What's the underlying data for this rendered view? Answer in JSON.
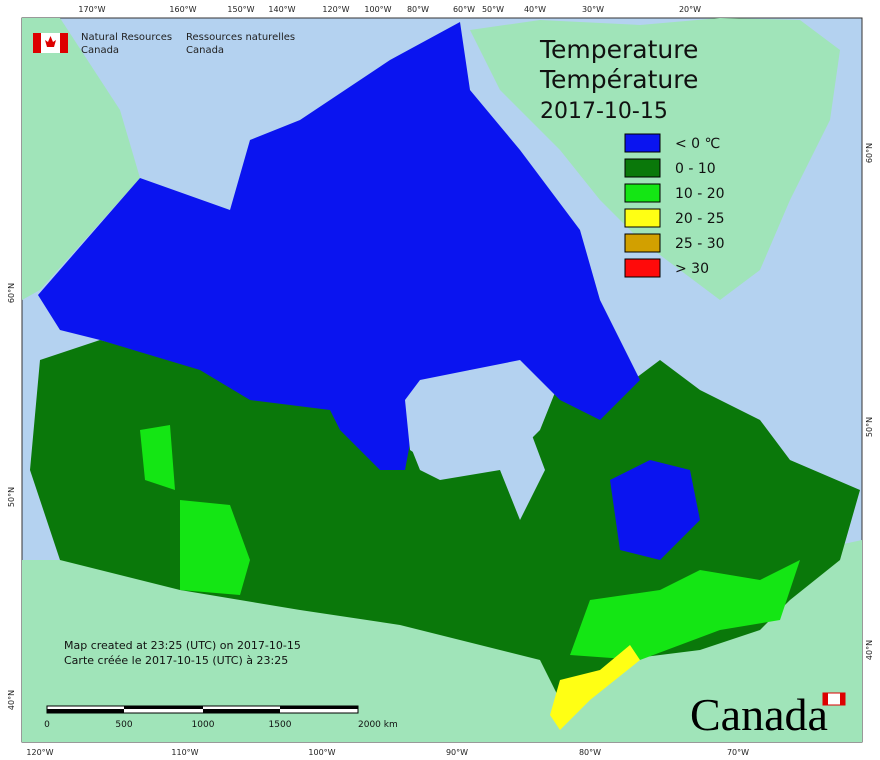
{
  "header": {
    "agency_en": [
      "Natural Resources",
      "Canada"
    ],
    "agency_fr": [
      "Ressources naturelles",
      "Canada"
    ]
  },
  "title": [
    "Temperature",
    "Température",
    "2017-10-15"
  ],
  "legend": [
    {
      "label": "< 0 ℃",
      "color": "#0a14f0"
    },
    {
      "label": "0 - 10",
      "color": "#0a780a"
    },
    {
      "label": "10 - 20",
      "color": "#14e614"
    },
    {
      "label": "20 - 25",
      "color": "#ffff14"
    },
    {
      "label": "25 - 30",
      "color": "#d2a000"
    },
    {
      "label": "> 30",
      "color": "#ff0a0a"
    }
  ],
  "graticule": {
    "top": [
      "170°W",
      "160°W",
      "150°W",
      "140°W",
      "120°W",
      "100°W",
      "80°W",
      "60°W",
      "50°W",
      "40°W",
      "30°W",
      "20°W"
    ],
    "bottom": [
      "120°W",
      "110°W",
      "100°W",
      "90°W",
      "80°W",
      "70°W"
    ],
    "left": [
      "60°N",
      "50°N",
      "40°N"
    ],
    "right": [
      "60°N",
      "50°N",
      "40°N"
    ]
  },
  "credits": [
    "Map created at 23:25 (UTC) on 2017-10-15",
    "Carte créée le 2017-10-15 (UTC) à 23:25"
  ],
  "scale_bar": [
    "0",
    "500",
    "1000",
    "1500",
    "2000 km"
  ],
  "wordmark": "Canada"
}
